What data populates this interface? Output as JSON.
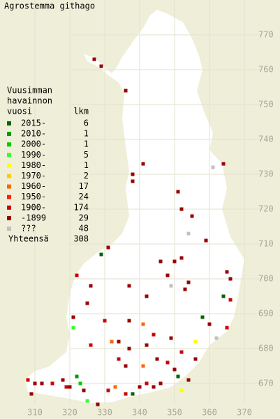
{
  "title": "Agrostemma githago",
  "legend": {
    "heading": [
      "Vuusimman",
      "havainnon",
      "vuosi"
    ],
    "count_heading": "lkm",
    "items": [
      {
        "label": "2015-",
        "color": "#006600",
        "count": 6
      },
      {
        "label": "2010-",
        "color": "#009900",
        "count": 1
      },
      {
        "label": "2000-",
        "color": "#00cc00",
        "count": 1
      },
      {
        "label": "1990-",
        "color": "#33ff33",
        "count": 5
      },
      {
        "label": "1980-",
        "color": "#ffff00",
        "count": 1
      },
      {
        "label": "1970-",
        "color": "#ffcc00",
        "count": 2
      },
      {
        "label": "1960-",
        "color": "#ff6600",
        "count": 17
      },
      {
        "label": "1950-",
        "color": "#ff2200",
        "count": 24
      },
      {
        "label": "1900-",
        "color": "#cc0000",
        "count": 174
      },
      {
        "label": "-1899",
        "color": "#990000",
        "count": 29
      },
      {
        "label": "???",
        "color": "#c0c0c0",
        "count": 48
      }
    ],
    "total_label": "Yhteensä",
    "total": 308
  },
  "xlim": [
    300,
    380
  ],
  "ylim": [
    660,
    780
  ],
  "xticks": [
    310,
    320,
    330,
    340,
    350,
    360,
    370
  ],
  "yticks": [
    670,
    680,
    690,
    700,
    710,
    720,
    730,
    740,
    750,
    760,
    770
  ],
  "points": [
    [
      327,
      763,
      9
    ],
    [
      329,
      761,
      9
    ],
    [
      336,
      754,
      9
    ],
    [
      338,
      730,
      9
    ],
    [
      341,
      733,
      9
    ],
    [
      338,
      728,
      9
    ],
    [
      351,
      725,
      9
    ],
    [
      352,
      720,
      9
    ],
    [
      361,
      732,
      10
    ],
    [
      364,
      733,
      9
    ],
    [
      354,
      713,
      10
    ],
    [
      355,
      718,
      9
    ],
    [
      359,
      711,
      9
    ],
    [
      329,
      707,
      0
    ],
    [
      331,
      709,
      9
    ],
    [
      346,
      705,
      9
    ],
    [
      350,
      705,
      9
    ],
    [
      352,
      706,
      9
    ],
    [
      348,
      701,
      9
    ],
    [
      349,
      698,
      10
    ],
    [
      353,
      697,
      9
    ],
    [
      354,
      699,
      9
    ],
    [
      365,
      702,
      9
    ],
    [
      366,
      700,
      9
    ],
    [
      364,
      695,
      0
    ],
    [
      366,
      694,
      8
    ],
    [
      358,
      689,
      0
    ],
    [
      360,
      687,
      9
    ],
    [
      365,
      686,
      8
    ],
    [
      322,
      701,
      8
    ],
    [
      326,
      698,
      9
    ],
    [
      325,
      693,
      9
    ],
    [
      337,
      698,
      9
    ],
    [
      342,
      695,
      9
    ],
    [
      321,
      686,
      3
    ],
    [
      321,
      689,
      9
    ],
    [
      330,
      688,
      8
    ],
    [
      337,
      688,
      9
    ],
    [
      341,
      687,
      6
    ],
    [
      344,
      684,
      8
    ],
    [
      349,
      683,
      9
    ],
    [
      356,
      682,
      4
    ],
    [
      362,
      683,
      10
    ],
    [
      332,
      682,
      6
    ],
    [
      334,
      682,
      9
    ],
    [
      326,
      681,
      8
    ],
    [
      337,
      680,
      9
    ],
    [
      342,
      681,
      9
    ],
    [
      352,
      679,
      8
    ],
    [
      356,
      677,
      9
    ],
    [
      334,
      677,
      8
    ],
    [
      336,
      675,
      9
    ],
    [
      341,
      675,
      6
    ],
    [
      345,
      677,
      9
    ],
    [
      348,
      676,
      8
    ],
    [
      350,
      674,
      9
    ],
    [
      351,
      672,
      0
    ],
    [
      354,
      671,
      9
    ],
    [
      308,
      671,
      8
    ],
    [
      310,
      670,
      9
    ],
    [
      312,
      670,
      9
    ],
    [
      315,
      670,
      8
    ],
    [
      318,
      671,
      9
    ],
    [
      319,
      669,
      8
    ],
    [
      322,
      672,
      1
    ],
    [
      323,
      670,
      2
    ],
    [
      324,
      668,
      9
    ],
    [
      325,
      665,
      3
    ],
    [
      328,
      664,
      9
    ],
    [
      331,
      668,
      8
    ],
    [
      333,
      669,
      6
    ],
    [
      336,
      667,
      8
    ],
    [
      338,
      667,
      0
    ],
    [
      340,
      669,
      9
    ],
    [
      342,
      670,
      8
    ],
    [
      344,
      669,
      9
    ],
    [
      346,
      670,
      9
    ],
    [
      352,
      668,
      4
    ],
    [
      309,
      667,
      9
    ],
    [
      320,
      669,
      9
    ]
  ]
}
